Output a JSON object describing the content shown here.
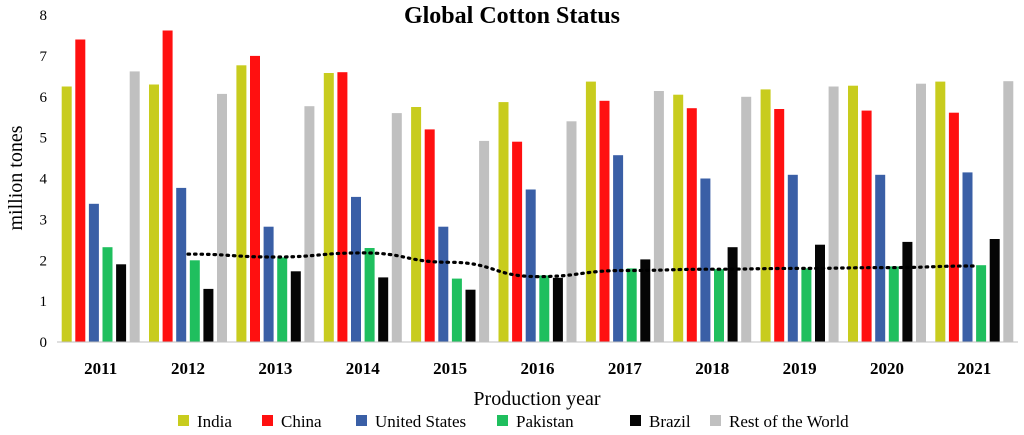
{
  "chart_data": {
    "type": "bar",
    "title": "Global Cotton Status",
    "xlabel": "Production year",
    "ylabel": "million tones",
    "ylim": [
      0,
      8
    ],
    "yticks": [
      0,
      1,
      2,
      3,
      4,
      5,
      6,
      7,
      8
    ],
    "grid": false,
    "legend_position": "bottom",
    "categories": [
      "2011",
      "2012",
      "2013",
      "2014",
      "2015",
      "2016",
      "2017",
      "2018",
      "2019",
      "2020",
      "2021"
    ],
    "series": [
      {
        "name": "India",
        "color": "#c8cc1e",
        "values": [
          6.25,
          6.3,
          6.77,
          6.58,
          5.75,
          5.87,
          6.37,
          6.05,
          6.18,
          6.27,
          6.37
        ]
      },
      {
        "name": "China",
        "color": "#ff1010",
        "values": [
          7.4,
          7.62,
          7.0,
          6.6,
          5.2,
          4.9,
          5.9,
          5.72,
          5.7,
          5.66,
          5.61
        ]
      },
      {
        "name": "United States",
        "color": "#3a5fa6",
        "values": [
          3.38,
          3.77,
          2.82,
          3.55,
          2.82,
          3.73,
          4.57,
          4.0,
          4.09,
          4.09,
          4.15
        ]
      },
      {
        "name": "Pakistan",
        "color": "#1fbf5e",
        "values": [
          2.32,
          2.0,
          2.07,
          2.3,
          1.55,
          1.63,
          1.8,
          1.78,
          1.8,
          1.85,
          1.88
        ]
      },
      {
        "name": "Brazil",
        "color": "#050505",
        "values": [
          1.9,
          1.3,
          1.73,
          1.58,
          1.28,
          1.57,
          2.02,
          2.32,
          2.38,
          2.45,
          2.52
        ]
      },
      {
        "name": "Rest of the World",
        "color": "#c0c0c0",
        "values": [
          6.62,
          6.07,
          5.77,
          5.6,
          4.92,
          5.4,
          6.14,
          6.0,
          6.25,
          6.32,
          6.38
        ]
      }
    ],
    "trendline": {
      "style": "dotted",
      "color": "#000000",
      "values": [
        2.15,
        2.08,
        2.18,
        1.95,
        1.6,
        1.75,
        1.78,
        1.8,
        1.82,
        1.86
      ]
    }
  }
}
